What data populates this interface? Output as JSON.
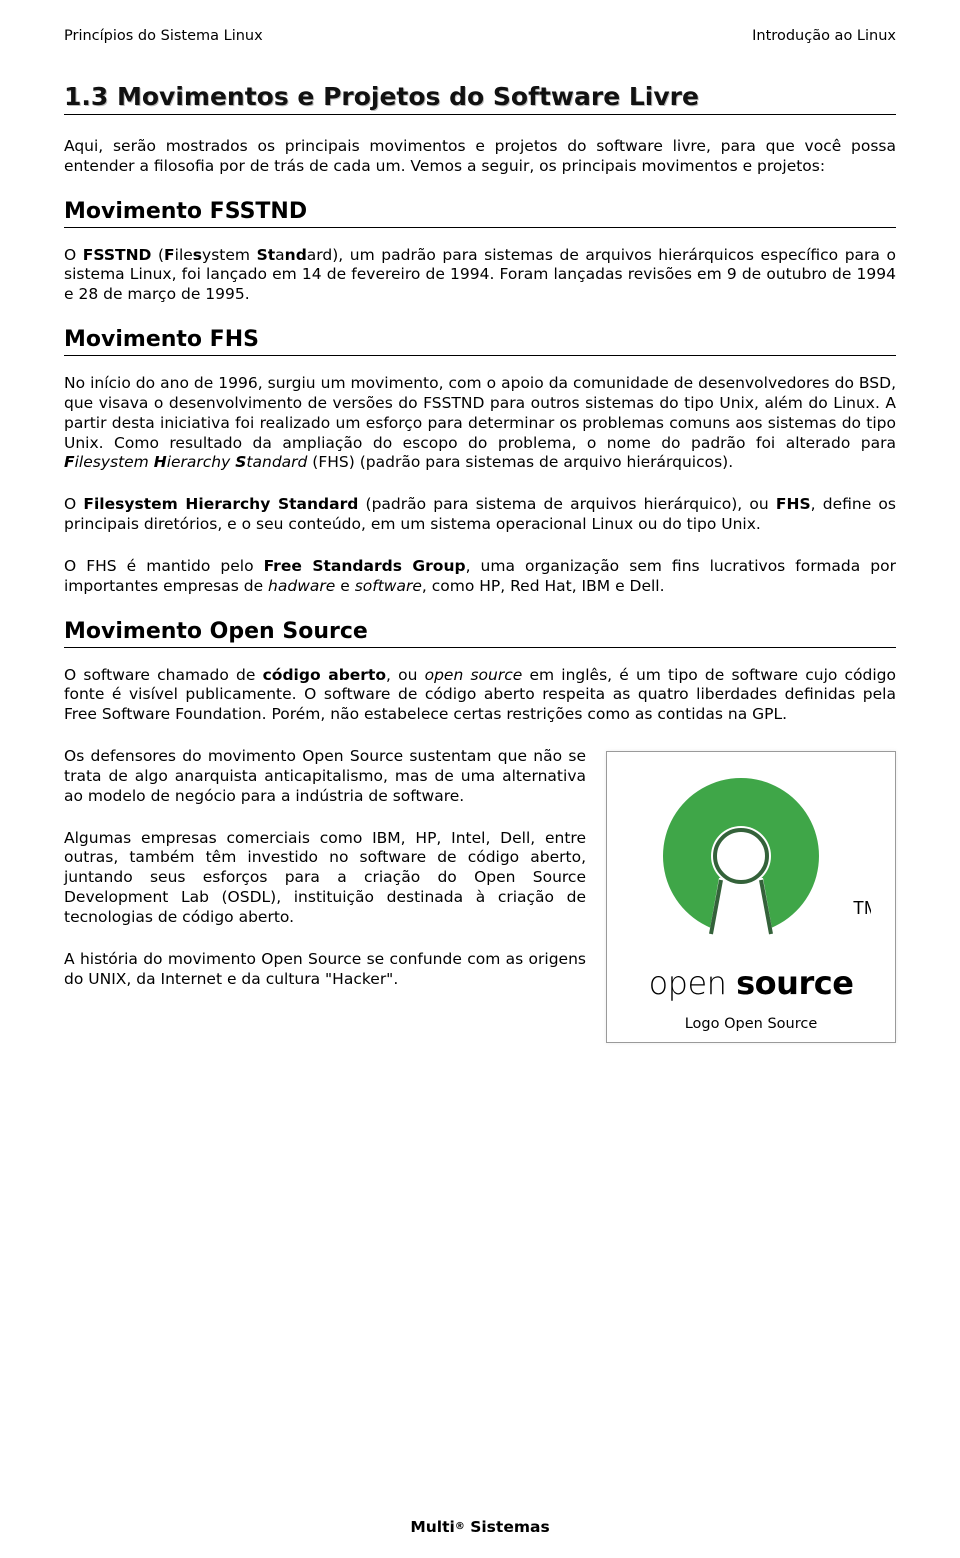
{
  "header": {
    "left": "Princípios do Sistema Linux",
    "right": "Introdução ao Linux"
  },
  "title": "1.3 Movimentos e Projetos do Software Livre",
  "intro_html": "Aqui, serão mostrados os principais movimentos e projetos do software livre, para que você possa entender a filosofia por de trás de cada um. Vemos a seguir, os principais movimentos e projetos:",
  "sections": {
    "fsstnd": {
      "heading": "Movimento FSSTND",
      "body_html": "O <b>FSSTND</b> (<b>F</b>ile<b>s</b>ystem <b>St</b>a<b>nd</b>ard), um padrão para sistemas de arquivos hierárquicos específico para o sistema Linux, foi lançado em 14 de fevereiro de 1994. Foram lançadas revisões em 9 de outubro de 1994 e 28 de março de 1995."
    },
    "fhs": {
      "heading": "Movimento FHS",
      "p1_html": "No início do ano de 1996, surgiu um movimento, com o apoio da comunidade de desenvolvedores do BSD, que visava o desenvolvimento de versões do FSSTND para outros sistemas do tipo Unix, além do Linux. A partir desta iniciativa foi realizado um esforço para determinar os problemas comuns aos sistemas do tipo Unix. Como resultado da ampliação do escopo do problema, o nome do padrão foi alterado para <b><i>F</i></b><i>ilesystem</i> <b><i>H</i></b><i>ierarchy</i> <b><i>S</i></b><i>tandard</i> (FHS) (padrão para sistemas de arquivo hierárquicos).",
      "p2_html": "O <b>Filesystem Hierarchy Standard</b> (padrão para sistema de arquivos hierárquico), ou <b>FHS</b>, define os principais diretórios, e o seu conteúdo, em um sistema operacional Linux ou do tipo Unix.",
      "p3_html": "O FHS é mantido pelo <b>Free Standards Group</b>, uma organização sem fins lucrativos formada por importantes empresas de <i>hadware</i> e <i>software</i>, como HP, Red Hat, IBM e Dell."
    },
    "opensource": {
      "heading": "Movimento Open Source",
      "p1_html": "O software chamado de <b>código aberto</b>, ou <i>open source</i> em inglês, é um tipo de software cujo código fonte é visível publicamente. O software de código aberto respeita as quatro liberdades definidas pela Free Software Foundation. Porém, não estabelece certas restrições como as contidas na GPL.",
      "p2_html": "Os defensores do movimento Open Source sustentam que não se trata de algo anarquista anticapitalismo, mas de uma alternativa ao modelo de negócio para a indústria de software.",
      "p3_html": "Algumas empresas comerciais como IBM, HP, Intel, Dell, entre outras, também têm investido no software de código aberto, juntando seus esforços para a criação do Open Source Development Lab (OSDL), instituição destinada à criação de tecnologias de código aberto.",
      "p4_html": "A história do movimento Open Source se confunde com as origens do UNIX, da Internet e da cultura \"Hacker\"."
    }
  },
  "figure": {
    "caption": "Logo Open Source",
    "ring_color": "#3fa648",
    "keyhole_color": "#34623a",
    "tm_text": "TM",
    "wordmark_html": "open <b>source</b>"
  },
  "footer_html": "Multi<span class='tm'>®</span> Sistemas"
}
